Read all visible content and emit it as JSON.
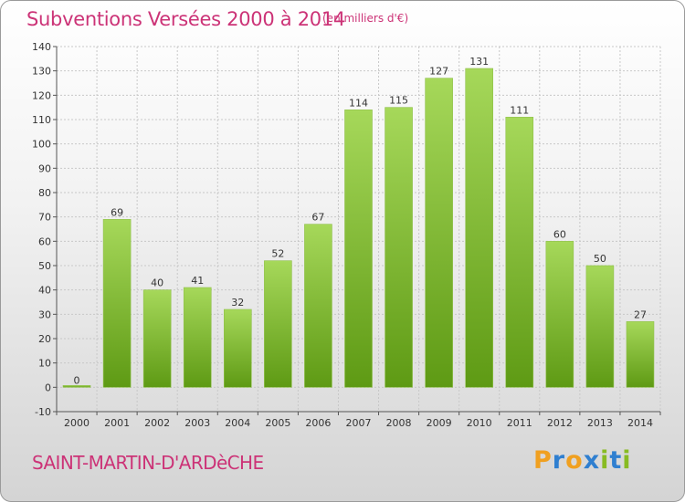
{
  "chart_data": {
    "type": "bar",
    "title": "Subventions Versées 2000 à 2014",
    "subtitle": "(en milliers d'€)",
    "categories": [
      "2000",
      "2001",
      "2002",
      "2003",
      "2004",
      "2005",
      "2006",
      "2007",
      "2008",
      "2009",
      "2010",
      "2011",
      "2012",
      "2013",
      "2014"
    ],
    "values": [
      0,
      69,
      40,
      41,
      32,
      52,
      67,
      114,
      115,
      127,
      131,
      111,
      60,
      50,
      27
    ],
    "ylim": [
      -10,
      140
    ],
    "yticks": [
      -10,
      0,
      10,
      20,
      30,
      40,
      50,
      60,
      70,
      80,
      90,
      100,
      110,
      120,
      130,
      140
    ],
    "grid": true,
    "xlabel": "",
    "ylabel": "",
    "bar_color": "#7cb82f"
  },
  "location": "SAINT-MARTIN-D'ARDèCHE",
  "logo": {
    "letters": [
      "P",
      "r",
      "o",
      "x",
      "i",
      "t",
      "i"
    ],
    "colors": [
      "#f0a020",
      "#2f7fd0",
      "#f0a020",
      "#2f7fd0",
      "#88bb22",
      "#2f7fd0",
      "#88bb22"
    ]
  }
}
